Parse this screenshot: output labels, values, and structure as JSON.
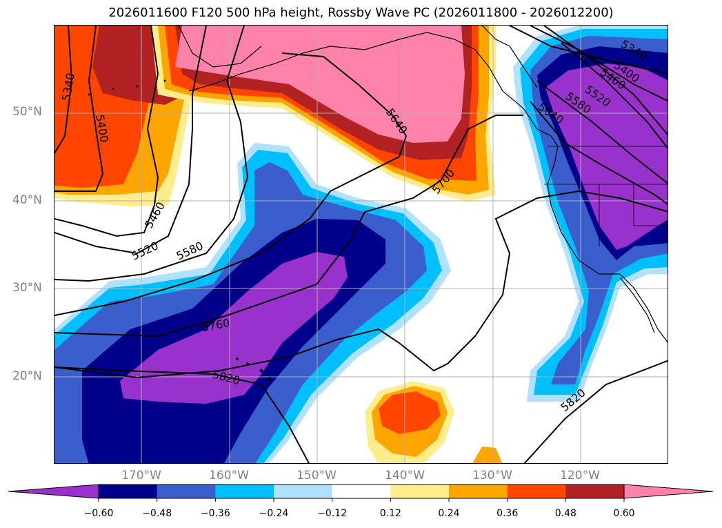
{
  "title": "2026011600 F120 500 hPa height, Rossby Wave PC (2026011800 - 2026012200)",
  "lat_labels": [
    "50°N",
    "40°N",
    "30°N",
    "20°N"
  ],
  "lon_labels": [
    "170°W",
    "160°W",
    "150°W",
    "140°W",
    "130°W",
    "120°W"
  ],
  "contour_labels": [
    "5340",
    "5400",
    "5460",
    "5520",
    "5580",
    "5640",
    "5700",
    "5760",
    "5820",
    "5340",
    "5400",
    "5460",
    "5520",
    "5580",
    "5640",
    "5820"
  ],
  "colorbar": {
    "ticks": [
      "−0.60",
      "−0.48",
      "−0.36",
      "−0.24",
      "−0.12",
      "0.12",
      "0.24",
      "0.36",
      "0.48",
      "0.60"
    ],
    "colors": [
      "#9932cc",
      "#00008b",
      "#3a5fcd",
      "#00bfff",
      "#b0e2ff",
      "#ffffff",
      "#ffec8b",
      "#ffa500",
      "#ff4500",
      "#b22222",
      "#ff82ab"
    ]
  },
  "chart_data": {
    "type": "heatmap",
    "title": "2026011600 F120 500 hPa height, Rossby Wave PC (2026011800 - 2026012200)",
    "fields": [
      "500 hPa height (contours)",
      "Rossby Wave PC (shaded)"
    ],
    "x_ticks": [
      "170°W",
      "160°W",
      "150°W",
      "140°W",
      "130°W",
      "120°W"
    ],
    "y_ticks": [
      "20°N",
      "30°N",
      "40°N",
      "50°N"
    ],
    "contour_levels": [
      5340,
      5400,
      5460,
      5520,
      5580,
      5640,
      5700,
      5760,
      5820
    ],
    "shading_levels": [
      -0.6,
      -0.48,
      -0.36,
      -0.24,
      -0.12,
      0.12,
      0.24,
      0.36,
      0.48,
      0.6
    ],
    "grid": true
  }
}
